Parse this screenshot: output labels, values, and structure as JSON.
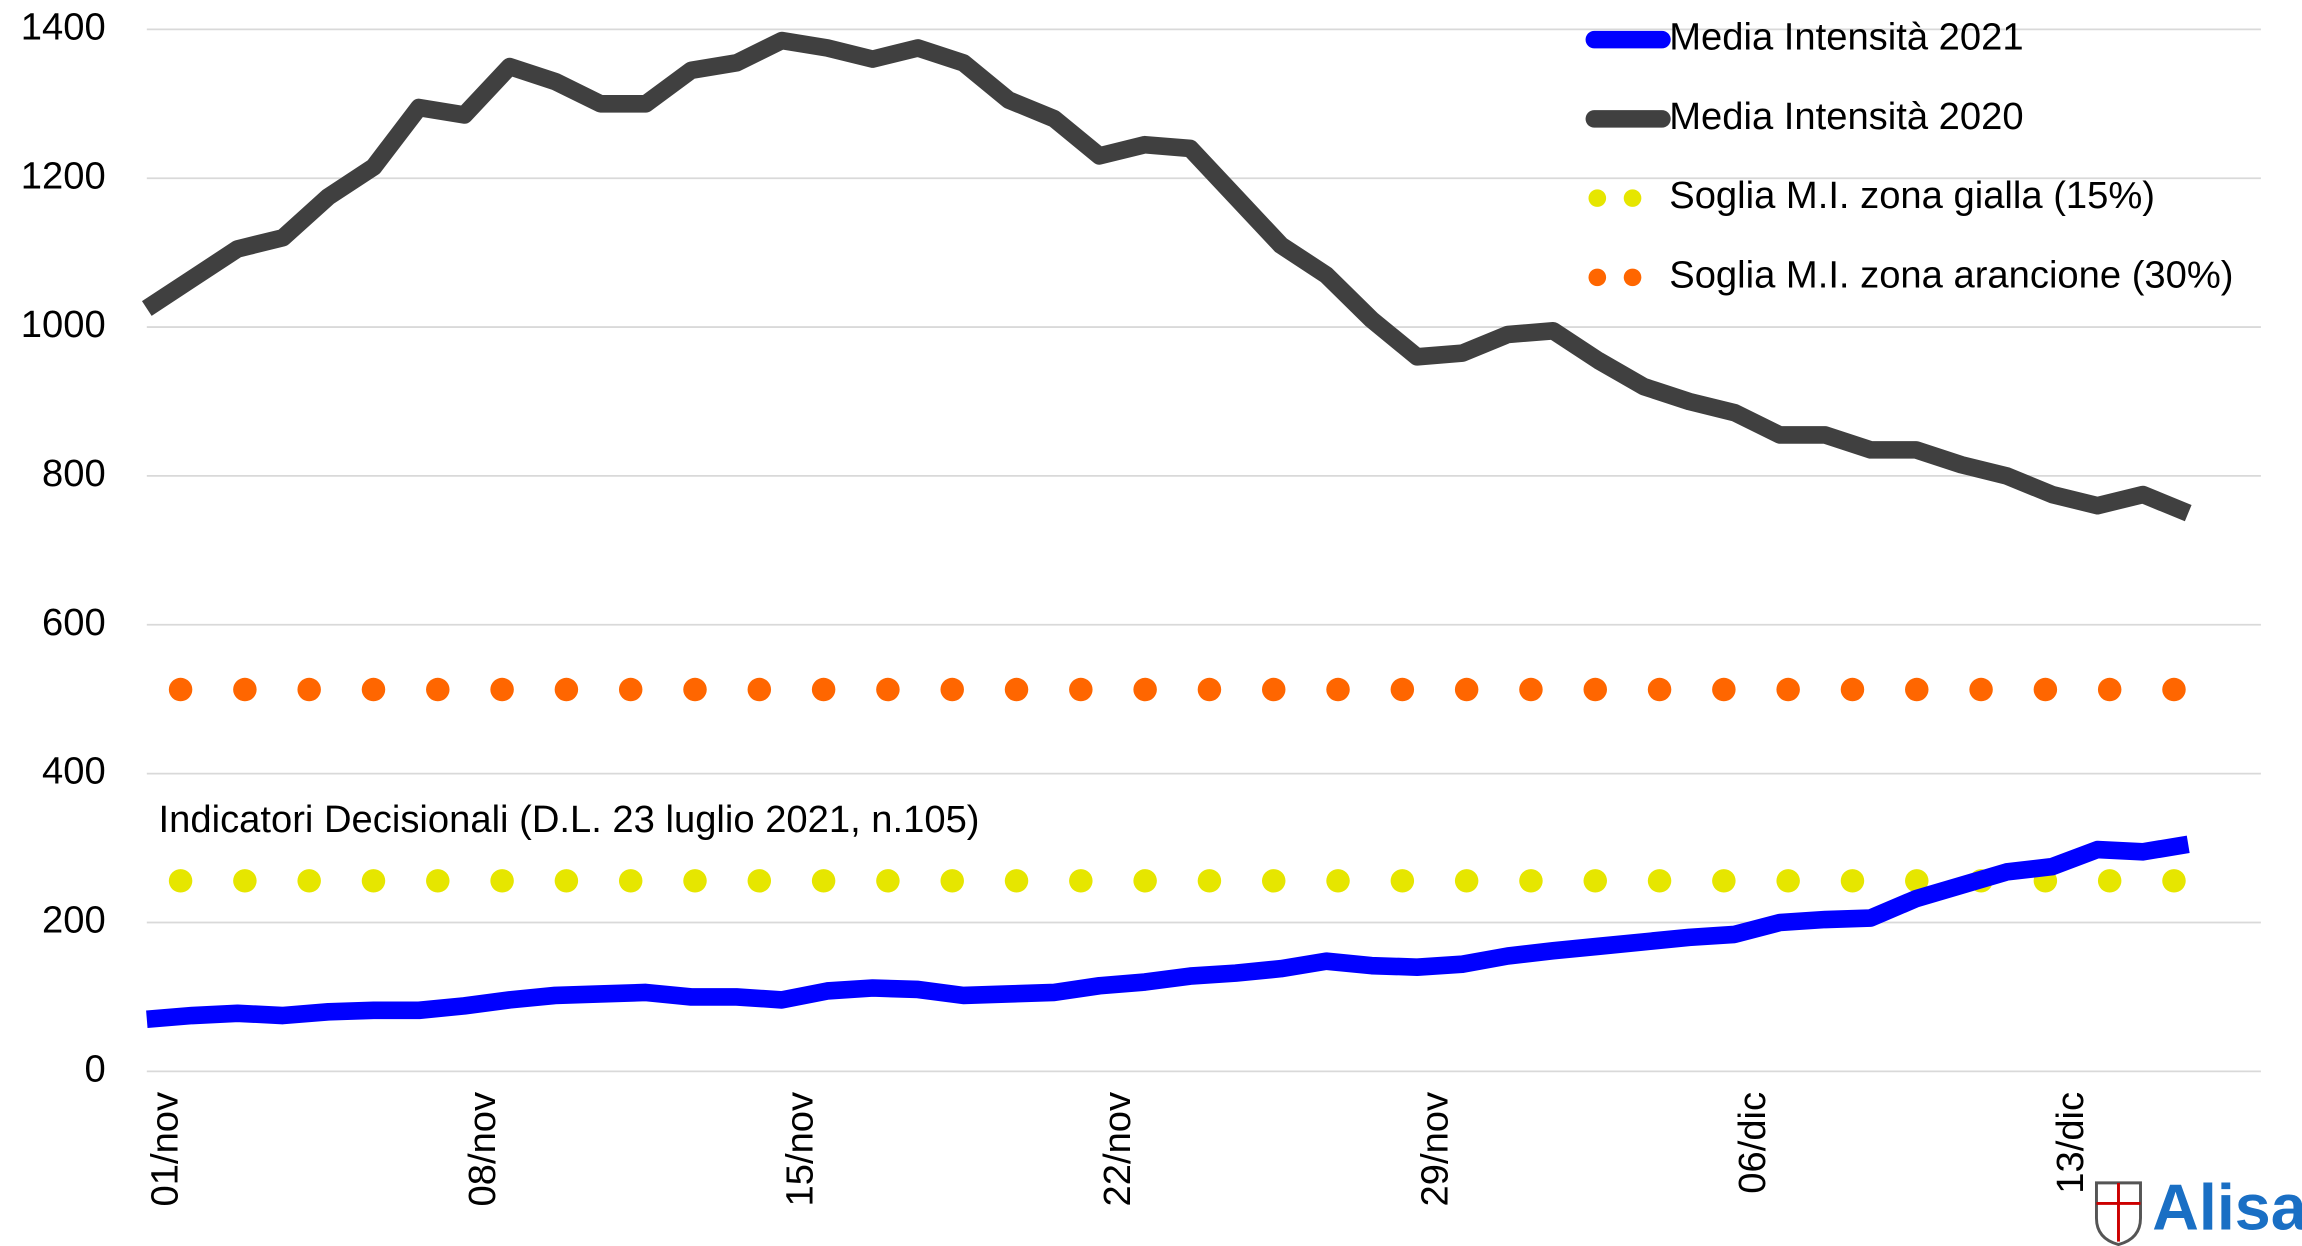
{
  "chart_data": {
    "type": "line",
    "annotation": "Indicatori Decisionali (D.L. 23 luglio 2021, n.105)",
    "logo": "Alisa",
    "categories": [
      "01/nov",
      null,
      null,
      null,
      null,
      null,
      null,
      "08/nov",
      null,
      null,
      null,
      null,
      null,
      null,
      "15/nov",
      null,
      null,
      null,
      null,
      null,
      null,
      "22/nov",
      null,
      null,
      null,
      null,
      null,
      null,
      "29/nov",
      null,
      null,
      null,
      null,
      null,
      null,
      "06/dic",
      null,
      null,
      null,
      null,
      null,
      null,
      "13/dic",
      null,
      null,
      null
    ],
    "series": [
      {
        "name": "Media Intensità 2021",
        "color": "#0000ff",
        "style": "solid",
        "values": [
          70,
          75,
          78,
          75,
          80,
          82,
          82,
          88,
          96,
          102,
          104,
          106,
          100,
          100,
          96,
          108,
          112,
          110,
          102,
          104,
          106,
          115,
          120,
          128,
          132,
          138,
          148,
          142,
          140,
          144,
          155,
          162,
          168,
          174,
          180,
          184,
          200,
          204,
          206,
          232,
          250,
          268,
          275,
          298,
          295,
          305
        ]
      },
      {
        "name": "Media Intensità 2020",
        "color": "#404040",
        "style": "solid",
        "values": [
          1025,
          1065,
          1105,
          1120,
          1175,
          1215,
          1295,
          1285,
          1350,
          1330,
          1300,
          1300,
          1345,
          1355,
          1385,
          1375,
          1360,
          1375,
          1355,
          1305,
          1280,
          1230,
          1245,
          1240,
          1175,
          1110,
          1070,
          1010,
          960,
          965,
          990,
          995,
          955,
          920,
          900,
          885,
          855,
          855,
          835,
          835,
          815,
          800,
          775,
          760,
          775,
          750
        ]
      },
      {
        "name": "Soglia M.I. zona gialla (15%)",
        "color": "#e6e600",
        "style": "dotted",
        "values": [
          256,
          256,
          256,
          256,
          256,
          256,
          256,
          256,
          256,
          256,
          256,
          256,
          256,
          256,
          256,
          256,
          256,
          256,
          256,
          256,
          256,
          256,
          256,
          256,
          256,
          256,
          256,
          256,
          256,
          256,
          256,
          256,
          256,
          256,
          256,
          256,
          256,
          256,
          256,
          256,
          256,
          256,
          256,
          256,
          256,
          256
        ]
      },
      {
        "name": "Soglia M.I. zona arancione (30%)",
        "color": "#ff6600",
        "style": "dotted",
        "values": [
          513,
          513,
          513,
          513,
          513,
          513,
          513,
          513,
          513,
          513,
          513,
          513,
          513,
          513,
          513,
          513,
          513,
          513,
          513,
          513,
          513,
          513,
          513,
          513,
          513,
          513,
          513,
          513,
          513,
          513,
          513,
          513,
          513,
          513,
          513,
          513,
          513,
          513,
          513,
          513,
          513,
          513,
          513,
          513,
          513,
          513
        ]
      }
    ],
    "ylim": [
      0,
      1400
    ],
    "yticks": [
      0,
      200,
      400,
      600,
      800,
      1000,
      1200,
      1400
    ],
    "grid": true,
    "legend": "top-right"
  }
}
